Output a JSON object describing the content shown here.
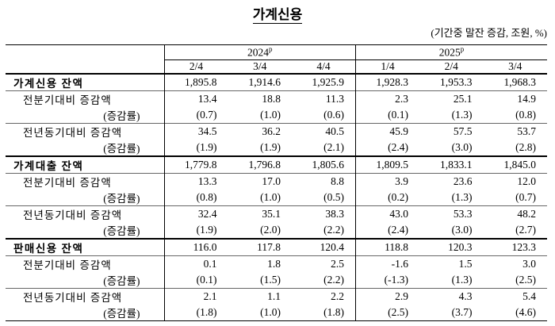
{
  "title": "가계신용",
  "unit": "(기간중 말잔 증감, 조원, %)",
  "header": {
    "years": [
      {
        "text": "2024",
        "sup": "p"
      },
      {
        "text": "2025",
        "sup": "p"
      }
    ],
    "quarters": [
      "2/4",
      "3/4",
      "4/4",
      "1/4",
      "2/4",
      "3/4"
    ]
  },
  "sections": [
    {
      "rows": [
        {
          "label": "가계신용 잔액",
          "values": [
            "1,895.8",
            "1,914.6",
            "1,925.9",
            "1,928.3",
            "1,953.3",
            "1,968.3"
          ]
        },
        {
          "label": "전분기대비 증감액",
          "values": [
            "13.4",
            "18.8",
            "11.3",
            "2.3",
            "25.1",
            "14.9"
          ]
        },
        {
          "label": "(증감률)",
          "values": [
            "(0.7)",
            "(1.0)",
            "(0.6)",
            "(0.1)",
            "(1.3)",
            "(0.8)"
          ]
        },
        {
          "label": "전년동기대비 증감액",
          "values": [
            "34.5",
            "36.2",
            "40.5",
            "45.9",
            "57.5",
            "53.7"
          ]
        },
        {
          "label": "(증감률)",
          "values": [
            "(1.9)",
            "(1.9)",
            "(2.1)",
            "(2.4)",
            "(3.0)",
            "(2.8)"
          ]
        }
      ]
    },
    {
      "rows": [
        {
          "label": "가계대출 잔액",
          "values": [
            "1,779.8",
            "1,796.8",
            "1,805.6",
            "1,809.5",
            "1,833.1",
            "1,845.0"
          ]
        },
        {
          "label": "전분기대비 증감액",
          "values": [
            "13.3",
            "17.0",
            "8.8",
            "3.9",
            "23.6",
            "12.0"
          ]
        },
        {
          "label": "(증감률)",
          "values": [
            "(0.8)",
            "(1.0)",
            "(0.5)",
            "(0.2)",
            "(1.3)",
            "(0.7)"
          ]
        },
        {
          "label": "전년동기대비 증감액",
          "values": [
            "32.4",
            "35.1",
            "38.3",
            "43.0",
            "53.3",
            "48.2"
          ]
        },
        {
          "label": "(증감률)",
          "values": [
            "(1.9)",
            "(2.0)",
            "(2.2)",
            "(2.4)",
            "(3.0)",
            "(2.7)"
          ]
        }
      ]
    },
    {
      "rows": [
        {
          "label": "판매신용 잔액",
          "values": [
            "116.0",
            "117.8",
            "120.4",
            "118.8",
            "120.3",
            "123.3"
          ]
        },
        {
          "label": "전분기대비 증감액",
          "values": [
            "0.1",
            "1.8",
            "2.5",
            "-1.6",
            "1.5",
            "3.0"
          ]
        },
        {
          "label": "(증감률)",
          "values": [
            "(0.1)",
            "(1.5)",
            "(2.2)",
            "(-1.3)",
            "(1.3)",
            "(2.5)"
          ]
        },
        {
          "label": "전년동기대비 증감액",
          "values": [
            "2.1",
            "1.1",
            "2.2",
            "2.9",
            "4.3",
            "5.4"
          ]
        },
        {
          "label": "(증감률)",
          "values": [
            "(1.8)",
            "(1.0)",
            "(1.8)",
            "(2.5)",
            "(3.7)",
            "(4.6)"
          ]
        }
      ]
    }
  ]
}
